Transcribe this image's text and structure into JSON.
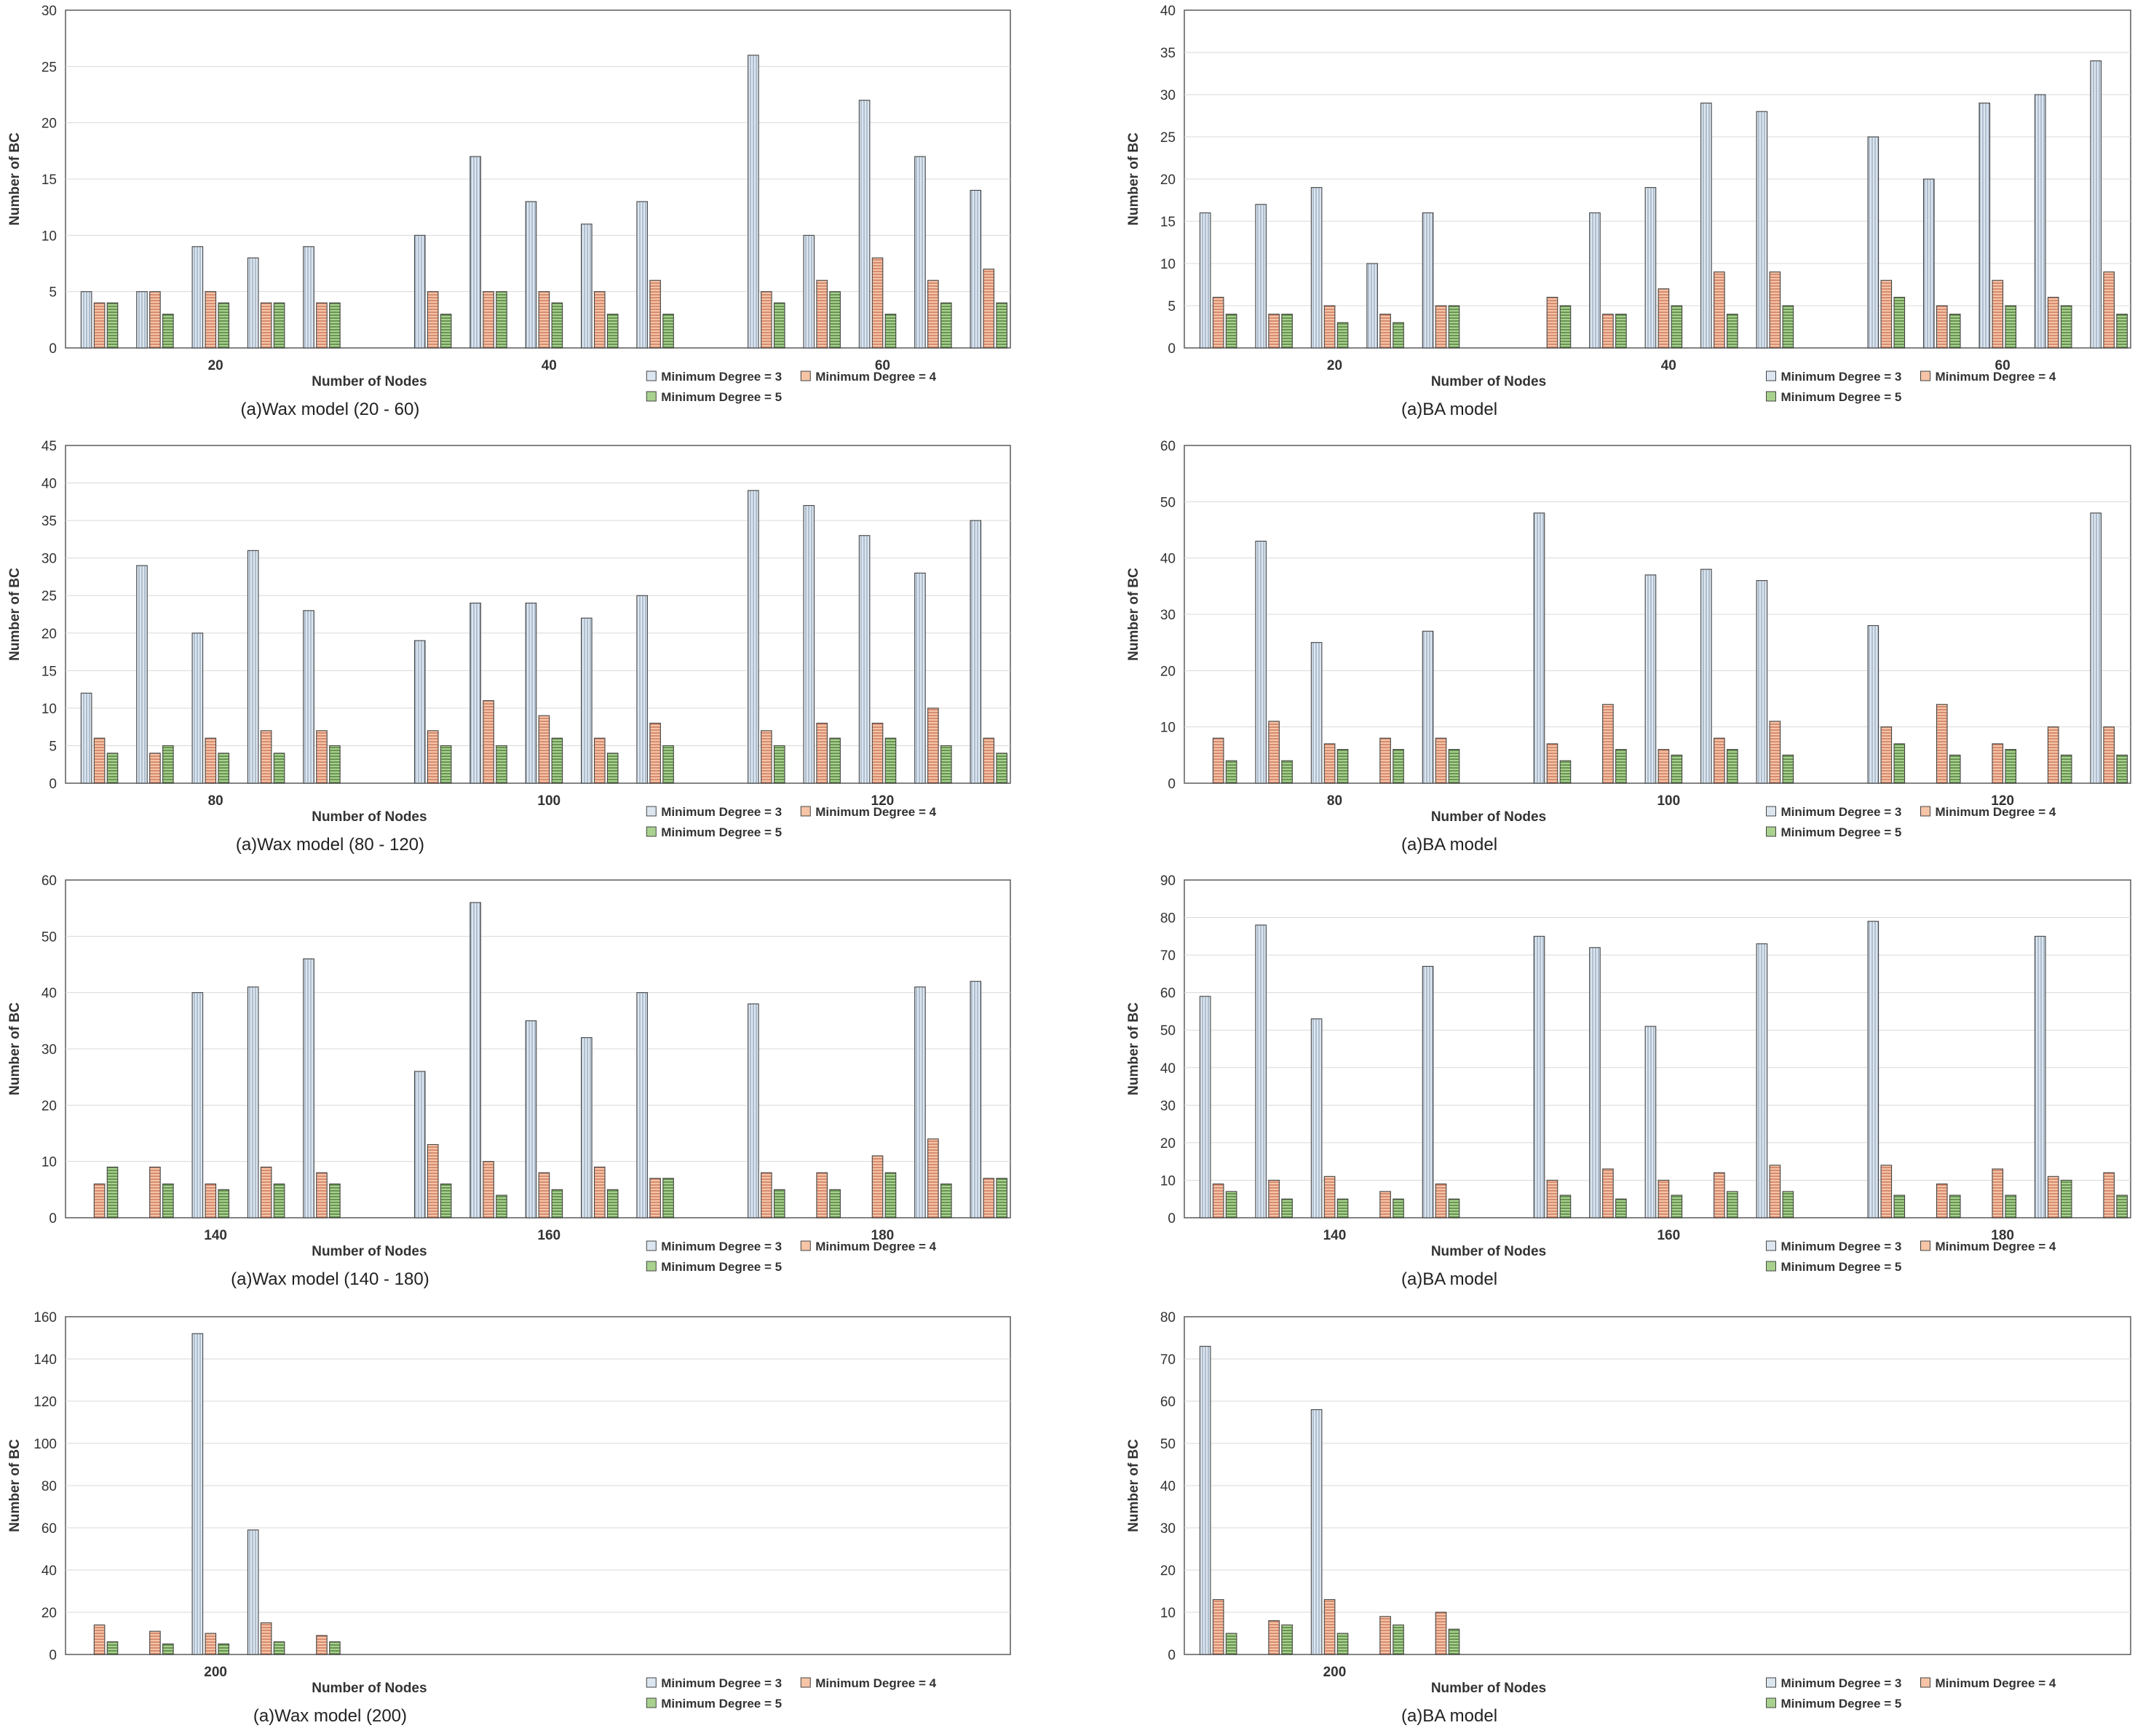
{
  "palette": {
    "s1": "#dce6f0",
    "s2": "#f6c4a6",
    "s3": "#a9d18e",
    "stroke": "#444444",
    "grid": "#d9d9d9"
  },
  "chart_data": [
    {
      "id": "wax-20-60",
      "type": "bar",
      "caption": "(a)Wax model (20 - 60)",
      "xlabel": "Number of Nodes",
      "ylabel": "Number of BC",
      "ylim": [
        0,
        30
      ],
      "yticks": [
        0,
        5,
        10,
        15,
        20,
        25,
        30
      ],
      "groups": [
        "20",
        "40",
        "60"
      ],
      "subgroups_per_group": 5,
      "series": [
        {
          "name": "Minimum Degree = 3",
          "values": [
            5,
            5,
            9,
            8,
            9,
            10,
            17,
            13,
            11,
            13,
            26,
            10,
            22,
            17,
            14
          ]
        },
        {
          "name": "Minimum Degree = 4",
          "values": [
            4,
            5,
            5,
            4,
            4,
            5,
            5,
            5,
            5,
            6,
            5,
            6,
            8,
            6,
            7
          ]
        },
        {
          "name": "Minimum Degree = 5",
          "values": [
            4,
            3,
            4,
            4,
            4,
            3,
            5,
            4,
            3,
            3,
            4,
            5,
            3,
            4,
            4
          ]
        }
      ]
    },
    {
      "id": "ba-20-60",
      "type": "bar",
      "caption": "(a)BA model",
      "xlabel": "Number of Nodes",
      "ylabel": "Number of BC",
      "ylim": [
        0,
        40
      ],
      "yticks": [
        0,
        5,
        10,
        15,
        20,
        25,
        30,
        35,
        40
      ],
      "groups": [
        "20",
        "40",
        "60"
      ],
      "subgroups_per_group": 5,
      "series": [
        {
          "name": "Minimum Degree = 3",
          "values": [
            16,
            17,
            19,
            10,
            16,
            0,
            16,
            19,
            29,
            28,
            25,
            20,
            29,
            30,
            34
          ]
        },
        {
          "name": "Minimum Degree = 4",
          "values": [
            6,
            4,
            5,
            4,
            5,
            6,
            4,
            7,
            9,
            9,
            8,
            5,
            8,
            6,
            9
          ]
        },
        {
          "name": "Minimum Degree = 5",
          "values": [
            4,
            4,
            3,
            3,
            5,
            5,
            4,
            5,
            4,
            5,
            6,
            4,
            5,
            5,
            4
          ]
        }
      ]
    },
    {
      "id": "wax-80-120",
      "type": "bar",
      "caption": "(a)Wax model (80 - 120)",
      "xlabel": "Number of Nodes",
      "ylabel": "Number of BC",
      "ylim": [
        0,
        45
      ],
      "yticks": [
        0,
        5,
        10,
        15,
        20,
        25,
        30,
        35,
        40,
        45
      ],
      "groups": [
        "80",
        "100",
        "120"
      ],
      "subgroups_per_group": 5,
      "series": [
        {
          "name": "Minimum Degree = 3",
          "values": [
            12,
            29,
            20,
            31,
            23,
            19,
            24,
            24,
            22,
            25,
            39,
            37,
            33,
            28,
            35
          ]
        },
        {
          "name": "Minimum Degree = 4",
          "values": [
            6,
            4,
            6,
            7,
            7,
            7,
            11,
            9,
            6,
            8,
            7,
            8,
            8,
            10,
            6
          ]
        },
        {
          "name": "Minimum Degree = 5",
          "values": [
            4,
            5,
            4,
            4,
            5,
            5,
            5,
            6,
            4,
            5,
            5,
            6,
            6,
            5,
            4
          ]
        }
      ]
    },
    {
      "id": "ba-80-120",
      "type": "bar",
      "caption": "(a)BA model",
      "xlabel": "Number of Nodes",
      "ylabel": "Number of BC",
      "ylim": [
        0,
        60
      ],
      "yticks": [
        0,
        10,
        20,
        30,
        40,
        50,
        60
      ],
      "groups": [
        "80",
        "100",
        "120"
      ],
      "subgroups_per_group": 5,
      "series": [
        {
          "name": "Minimum Degree = 3",
          "values": [
            0,
            43,
            25,
            0,
            27,
            48,
            0,
            37,
            38,
            36,
            28,
            0,
            0,
            0,
            48
          ]
        },
        {
          "name": "Minimum Degree = 4",
          "values": [
            8,
            11,
            7,
            8,
            8,
            7,
            14,
            6,
            8,
            11,
            10,
            14,
            7,
            10,
            10
          ]
        },
        {
          "name": "Minimum Degree = 5",
          "values": [
            4,
            4,
            6,
            6,
            6,
            4,
            6,
            5,
            6,
            5,
            7,
            5,
            6,
            5,
            5
          ]
        }
      ]
    },
    {
      "id": "wax-140-180",
      "type": "bar",
      "caption": "(a)Wax model (140 - 180)",
      "xlabel": "Number of Nodes",
      "ylabel": "Number of BC",
      "ylim": [
        0,
        60
      ],
      "yticks": [
        0,
        10,
        20,
        30,
        40,
        50,
        60
      ],
      "groups": [
        "140",
        "160",
        "180"
      ],
      "subgroups_per_group": 5,
      "series": [
        {
          "name": "Minimum Degree = 3",
          "values": [
            0,
            0,
            40,
            41,
            46,
            26,
            56,
            35,
            32,
            40,
            38,
            0,
            0,
            41,
            42
          ]
        },
        {
          "name": "Minimum Degree = 4",
          "values": [
            6,
            9,
            6,
            9,
            8,
            13,
            10,
            8,
            9,
            7,
            8,
            8,
            11,
            14,
            7
          ]
        },
        {
          "name": "Minimum Degree = 5",
          "values": [
            9,
            6,
            5,
            6,
            6,
            6,
            4,
            5,
            5,
            7,
            5,
            5,
            8,
            6,
            7
          ]
        }
      ]
    },
    {
      "id": "ba-140-180",
      "type": "bar",
      "caption": "(a)BA model",
      "xlabel": "Number of Nodes",
      "ylabel": "Number of BC",
      "ylim": [
        0,
        90
      ],
      "yticks": [
        0,
        10,
        20,
        30,
        40,
        50,
        60,
        70,
        80,
        90
      ],
      "groups": [
        "140",
        "160",
        "180"
      ],
      "subgroups_per_group": 5,
      "series": [
        {
          "name": "Minimum Degree = 3",
          "values": [
            59,
            78,
            53,
            0,
            67,
            75,
            72,
            51,
            0,
            73,
            79,
            0,
            0,
            75,
            0
          ]
        },
        {
          "name": "Minimum Degree = 4",
          "values": [
            9,
            10,
            11,
            7,
            9,
            10,
            13,
            10,
            12,
            14,
            14,
            9,
            13,
            11,
            12
          ]
        },
        {
          "name": "Minimum Degree = 5",
          "values": [
            7,
            5,
            5,
            5,
            5,
            6,
            5,
            6,
            7,
            7,
            6,
            6,
            6,
            10,
            6
          ]
        }
      ]
    },
    {
      "id": "wax-200",
      "type": "bar",
      "caption": "(a)Wax model (200)",
      "xlabel": "Number of Nodes",
      "ylabel": "Number of BC",
      "ylim": [
        0,
        160
      ],
      "yticks": [
        0,
        20,
        40,
        60,
        80,
        100,
        120,
        140,
        160
      ],
      "groups": [
        "200"
      ],
      "subgroups_per_group": 5,
      "total_slots": 15,
      "series": [
        {
          "name": "Minimum Degree = 3",
          "values": [
            0,
            0,
            152,
            59,
            0
          ]
        },
        {
          "name": "Minimum Degree = 4",
          "values": [
            14,
            11,
            10,
            15,
            9
          ]
        },
        {
          "name": "Minimum Degree = 5",
          "values": [
            6,
            5,
            5,
            6,
            6
          ]
        }
      ]
    },
    {
      "id": "ba-200",
      "type": "bar",
      "caption": "(a)BA model",
      "xlabel": "Number of Nodes",
      "ylabel": "Number of BC",
      "ylim": [
        0,
        80
      ],
      "yticks": [
        0,
        10,
        20,
        30,
        40,
        50,
        60,
        70,
        80
      ],
      "groups": [
        "200"
      ],
      "subgroups_per_group": 5,
      "total_slots": 15,
      "series": [
        {
          "name": "Minimum Degree = 3",
          "values": [
            73,
            0,
            58,
            0,
            0
          ]
        },
        {
          "name": "Minimum Degree = 4",
          "values": [
            13,
            8,
            13,
            9,
            10
          ]
        },
        {
          "name": "Minimum Degree = 5",
          "values": [
            5,
            7,
            5,
            7,
            6
          ]
        }
      ]
    }
  ]
}
